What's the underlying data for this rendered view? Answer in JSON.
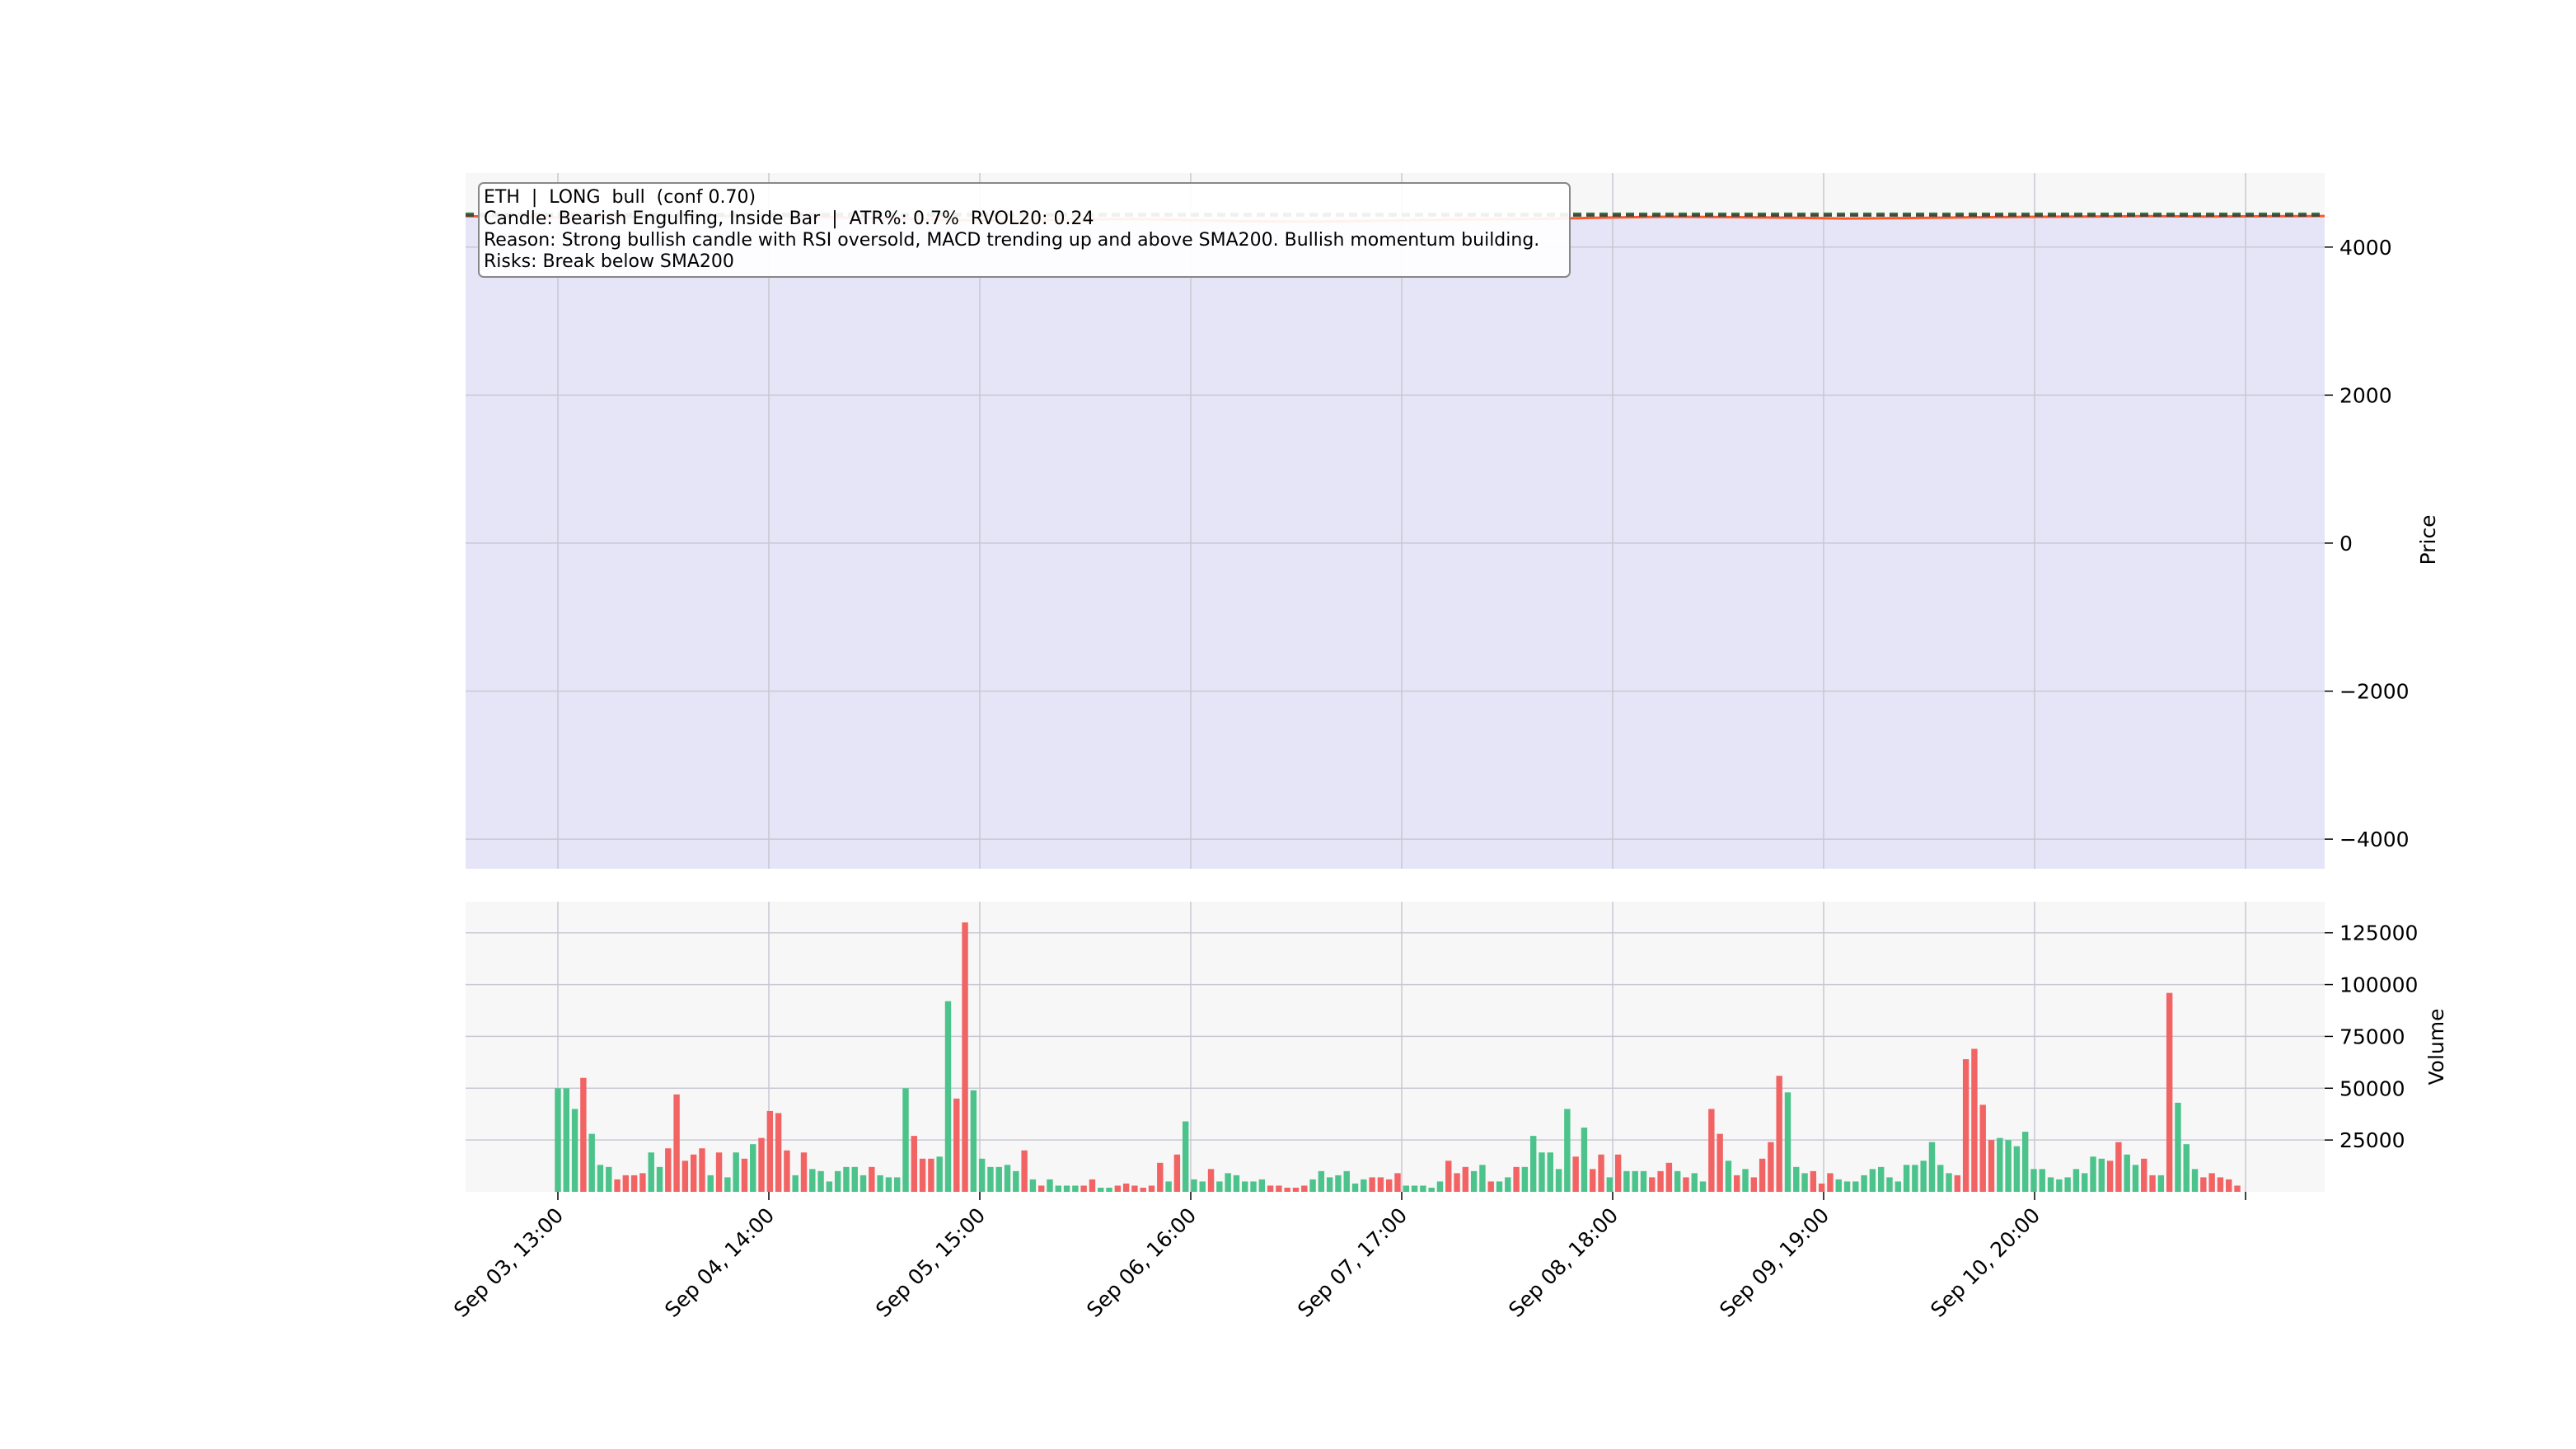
{
  "chart_data": [
    {
      "type": "line",
      "panel": "price",
      "symbol": "ETH",
      "ylabel": "Price",
      "ylim": [
        -4400,
        5000
      ],
      "yticks": [
        4000,
        2000,
        0,
        -2000,
        -4000
      ],
      "ytick_labels": [
        "4000",
        "2000",
        "0",
        "−2000",
        "−4000"
      ],
      "grid": true,
      "shaded_band": {
        "from": -4400,
        "to": 4400,
        "color": "#e5e5f7"
      },
      "series": [
        {
          "name": "",
          "color": "#ff5722",
          "style": "solid",
          "values": [
            4418,
            4405,
            4396,
            4408,
            4422,
            4415,
            4402,
            4390,
            4368,
            4355,
            4372,
            4381,
            4366,
            4350,
            4343,
            4352,
            4367,
            4375,
            4382,
            4398,
            4410,
            4405,
            4398,
            4386,
            4392,
            4402,
            4408,
            4412,
            4418,
            4413,
            4416,
            4420
          ]
        },
        {
          "name": "",
          "color": "#2e7d32",
          "style": "dashed",
          "level": 4450
        },
        {
          "name": "",
          "color": "#444444",
          "style": "dashed",
          "level": 4428
        }
      ]
    },
    {
      "type": "bar",
      "panel": "volume",
      "ylabel": "Volume",
      "ylim": [
        0,
        140000
      ],
      "yticks": [
        25000,
        50000,
        75000,
        100000,
        125000
      ],
      "ytick_labels": [
        "25000",
        "50000",
        "75000",
        "100000",
        "125000"
      ],
      "up_color": "#4cc38a",
      "down_color": "#f26464",
      "values": [
        50000,
        50000,
        40000,
        55000,
        28000,
        13000,
        12000,
        6000,
        8000,
        8000,
        9000,
        19000,
        12000,
        21000,
        47000,
        15000,
        18000,
        21000,
        8000,
        19000,
        7000,
        19000,
        16000,
        23000,
        26000,
        39000,
        38000,
        20000,
        8000,
        19000,
        11000,
        10000,
        5000,
        10000,
        12000,
        12000,
        8000,
        12000,
        8000,
        7000,
        7000,
        50000,
        27000,
        16000,
        16000,
        17000,
        92000,
        45000,
        130000,
        49000,
        16000,
        12000,
        12000,
        13000,
        10000,
        20000,
        6000,
        3000,
        6000,
        3000,
        3000,
        3000,
        3000,
        6000,
        2000,
        2000,
        3000,
        4000,
        3000,
        2000,
        3000,
        14000,
        5000,
        18000,
        34000,
        6000,
        5000,
        11000,
        5000,
        9000,
        8000,
        5000,
        5000,
        6000,
        3000,
        3000,
        2000,
        2000,
        3000,
        6000,
        10000,
        7000,
        8000,
        10000,
        4000,
        6000,
        7000,
        7000,
        6000,
        9000,
        3000,
        3000,
        3000,
        2000,
        5000,
        15000,
        9000,
        12000,
        10000,
        13000,
        5000,
        5000,
        7000,
        12000,
        12000,
        27000,
        19000,
        19000,
        11000,
        40000,
        17000,
        31000,
        11000,
        18000,
        7000,
        18000,
        10000,
        10000,
        10000,
        7000,
        10000,
        14000,
        10000,
        7000,
        9000,
        5000,
        40000,
        28000,
        15000,
        8000,
        11000,
        7000,
        16000,
        24000,
        56000,
        48000,
        12000,
        9000,
        10000,
        4000,
        9000,
        6000,
        5000,
        5000,
        8000,
        11000,
        12000,
        7000,
        5000,
        13000,
        13000,
        15000,
        24000,
        13000,
        9000,
        8000,
        64000,
        69000,
        42000,
        25000,
        26000,
        25000,
        22000,
        29000,
        11000,
        11000,
        7000,
        6000,
        7000,
        11000,
        9000,
        17000,
        16000,
        15000,
        24000,
        18000,
        13000,
        16000,
        8000,
        8000,
        96000,
        43000,
        23000,
        11000,
        7000,
        9000,
        7000,
        6000,
        3000
      ],
      "directions": [
        "up",
        "up",
        "up",
        "down",
        "up",
        "up",
        "up",
        "down",
        "down",
        "down",
        "down",
        "up",
        "up",
        "down",
        "down",
        "down",
        "down",
        "down",
        "up",
        "down",
        "up",
        "up",
        "down",
        "up",
        "down",
        "down",
        "down",
        "down",
        "up",
        "down",
        "up",
        "up",
        "up",
        "up",
        "up",
        "up",
        "up",
        "down",
        "up",
        "up",
        "up",
        "up",
        "down",
        "down",
        "down",
        "up",
        "up",
        "down",
        "down",
        "up",
        "up",
        "up",
        "up",
        "up",
        "up",
        "down",
        "up",
        "down",
        "up",
        "up",
        "up",
        "up",
        "down",
        "down",
        "up",
        "up",
        "down",
        "down",
        "down",
        "down",
        "down",
        "down",
        "up",
        "down",
        "up",
        "up",
        "up",
        "down",
        "up",
        "up",
        "up",
        "up",
        "up",
        "up",
        "down",
        "down",
        "down",
        "down",
        "down",
        "up",
        "up",
        "up",
        "up",
        "up",
        "up",
        "up",
        "down",
        "down",
        "down",
        "down",
        "up",
        "up",
        "up",
        "up",
        "up",
        "down",
        "down",
        "down",
        "up",
        "up",
        "down",
        "up",
        "up",
        "down",
        "up",
        "up",
        "up",
        "up",
        "up",
        "up",
        "down",
        "up",
        "down",
        "down",
        "up",
        "down",
        "up",
        "up",
        "up",
        "down",
        "down",
        "down",
        "up",
        "down",
        "up",
        "up",
        "down",
        "down",
        "up",
        "down",
        "up",
        "down",
        "down",
        "down",
        "down",
        "up",
        "up",
        "up",
        "down",
        "down",
        "down",
        "up",
        "up",
        "up",
        "up",
        "up",
        "up",
        "up",
        "up",
        "up",
        "up",
        "up",
        "up",
        "up",
        "up",
        "down",
        "down",
        "down",
        "down",
        "down",
        "up",
        "up",
        "up",
        "up",
        "up",
        "up",
        "up",
        "up",
        "up",
        "up",
        "up",
        "up",
        "up",
        "down",
        "down",
        "up",
        "up",
        "down",
        "down",
        "up",
        "down",
        "up",
        "up",
        "up",
        "down"
      ],
      "grid": true
    }
  ],
  "x_axis": {
    "tick_labels": [
      "Sep 03, 13:00",
      "Sep 04, 14:00",
      "Sep 05, 15:00",
      "Sep 06, 16:00",
      "Sep 07, 17:00",
      "Sep 08, 18:00",
      "Sep 09, 19:00",
      "Sep 10, 20:00",
      ""
    ],
    "rotation": 45
  },
  "annotation": {
    "lines": [
      "ETH  |  LONG  bull  (conf 0.70)",
      "Candle: Bearish Engulfing, Inside Bar  |  ATR%: 0.7%  RVOL20: 0.24",
      "Reason: Strong bullish candle with RSI oversold, MACD trending up and above SMA200. Bullish momentum building.",
      "Risks: Break below SMA200"
    ]
  },
  "colors": {
    "price_background": "#e5e5f7",
    "volume_background": "#f7f7f7",
    "grid": "#c8c8d4",
    "up": "#4cc38a",
    "down": "#f26464",
    "price_line": "#ff5722",
    "level_green": "#2e7d32",
    "level_dark": "#444444"
  }
}
